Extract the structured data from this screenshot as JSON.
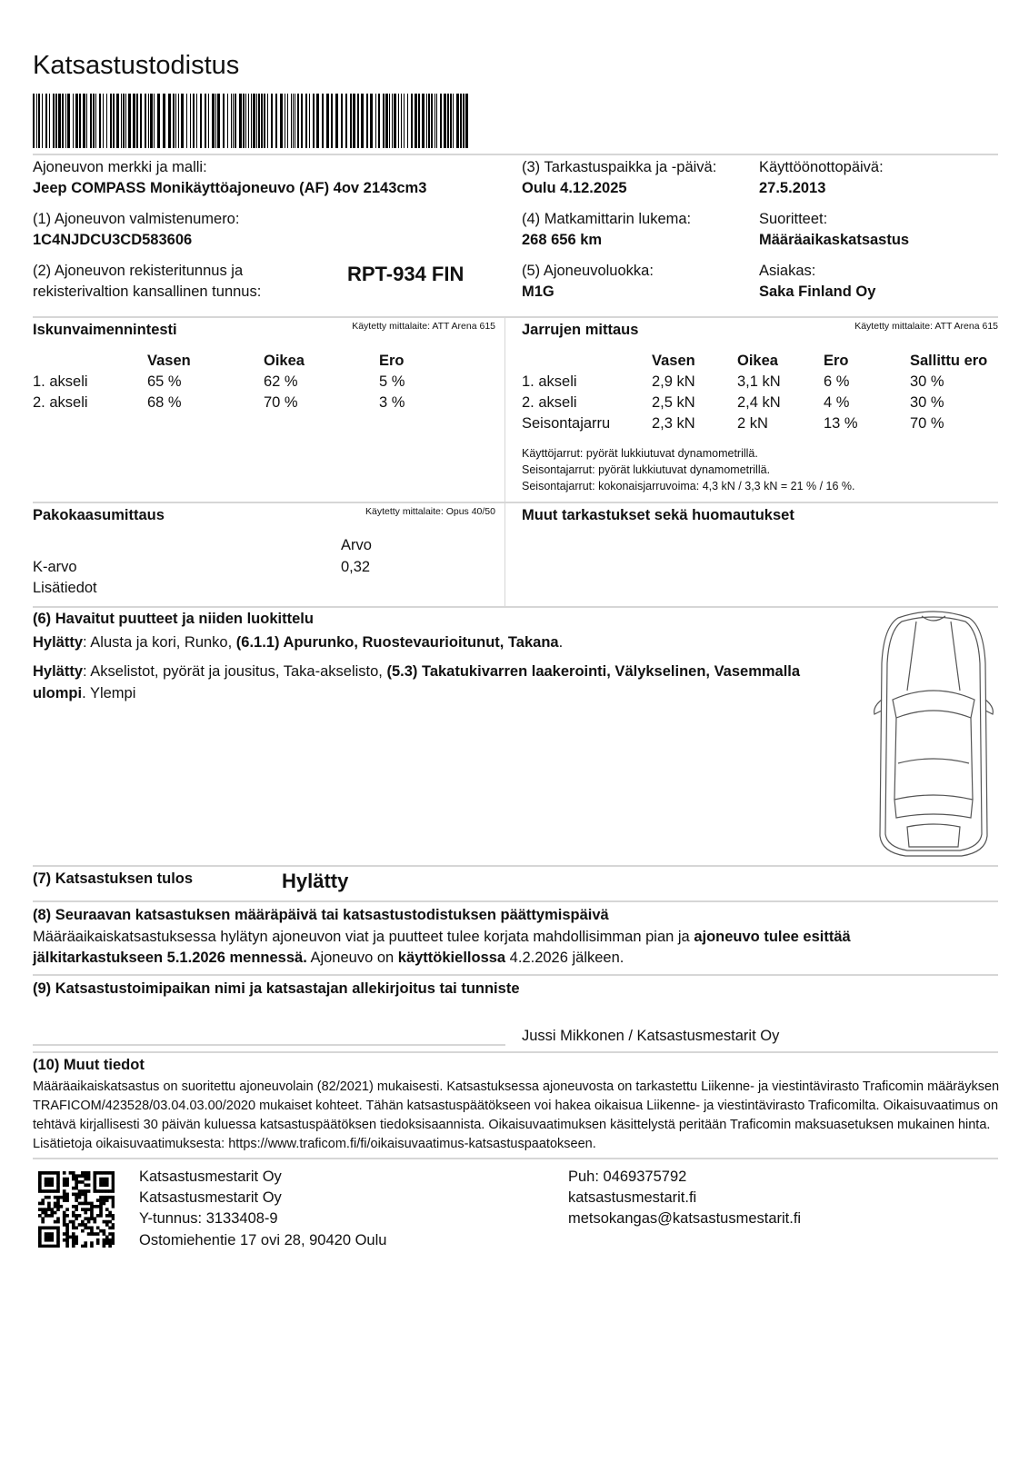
{
  "title": "Katsastustodistus",
  "vehicle": {
    "make_model_label": "Ajoneuvon merkki ja malli:",
    "make_model": "Jeep COMPASS Monikäyttöajoneuvo (AF) 4ov 2143cm3",
    "vin_label": "(1) Ajoneuvon valmistenumero:",
    "vin": "1C4NJDCU3CD583606",
    "reg_label_1": "(2) Ajoneuvon rekisteritunnus ja",
    "reg_label_2": "rekisterivaltion kansallinen tunnus:",
    "reg": "RPT-934 FIN",
    "place_date_label": "(3) Tarkastuspaikka ja -päivä:",
    "place_date": "Oulu 4.12.2025",
    "odometer_label": "(4) Matkamittarin lukema:",
    "odometer": "268 656 km",
    "class_label": "(5) Ajoneuvoluokka:",
    "class": "M1G",
    "first_use_label": "Käyttöönottopäivä:",
    "first_use": "27.5.2013",
    "services_label": "Suoritteet:",
    "services": "Määräaikaskatsastus",
    "customer_label": "Asiakas:",
    "customer": "Saka Finland Oy"
  },
  "shock": {
    "title": "Iskunvaimennintesti",
    "meter": "Käytetty mittalaite: ATT Arena 615",
    "headers": [
      "Vasen",
      "Oikea",
      "Ero"
    ],
    "rows": [
      {
        "label": "1. akseli",
        "cells": [
          "65 %",
          "62 %",
          "5 %"
        ]
      },
      {
        "label": "2. akseli",
        "cells": [
          "68 %",
          "70 %",
          "3 %"
        ]
      }
    ]
  },
  "brakes": {
    "title": "Jarrujen mittaus",
    "meter": "Käytetty mittalaite: ATT Arena 615",
    "headers": [
      "Vasen",
      "Oikea",
      "Ero",
      "Sallittu ero"
    ],
    "rows": [
      {
        "label": "1. akseli",
        "cells": [
          "2,9 kN",
          "3,1 kN",
          "6 %",
          "30 %"
        ]
      },
      {
        "label": "2. akseli",
        "cells": [
          "2,5 kN",
          "2,4 kN",
          "4 %",
          "30 %"
        ]
      },
      {
        "label": "Seisontajarru",
        "cells": [
          "2,3 kN",
          "2 kN",
          "13 %",
          "70 %"
        ]
      }
    ],
    "notes": [
      "Käyttöjarrut: pyörät lukkiutuvat dynamometrillä.",
      "Seisontajarrut: pyörät lukkiutuvat dynamometrillä.",
      "Seisontajarrut: kokonaisjarruvoima: 4,3 kN / 3,3 kN = 21 % / 16 %."
    ]
  },
  "exhaust": {
    "title": "Pakokaasumittaus",
    "meter": "Käytetty mittalaite: Opus 40/50",
    "value_header": "Arvo",
    "k_label": "K-arvo",
    "k_value": "0,32",
    "extra_label": "Lisätiedot"
  },
  "other_checks": {
    "title": "Muut tarkastukset sekä huomautukset"
  },
  "defects": {
    "title": "(6) Havaitut puutteet ja niiden luokittelu",
    "items": [
      [
        {
          "t": "Hylätty",
          "b": true
        },
        {
          "t": ": Alusta ja kori, Runko, "
        },
        {
          "t": "(6.1.1) Apurunko, Ruostevaurioitunut, Takana",
          "b": true
        },
        {
          "t": "."
        }
      ],
      [
        {
          "t": "Hylätty",
          "b": true
        },
        {
          "t": ": Akselistot, pyörät ja jousitus, Taka-akselisto, "
        },
        {
          "t": "(5.3) Takatukivarren laakerointi, Välykselinen, Vasemmalla ulompi",
          "b": true
        },
        {
          "t": ".  Ylempi"
        }
      ]
    ]
  },
  "result": {
    "label": "(7) Katsastuksen tulos",
    "value": "Hylätty"
  },
  "next": {
    "title": "(8) Seuraavan katsastuksen määräpäivä tai katsastustodistuksen päättymispäivä",
    "text": [
      {
        "t": "Määräaikaiskatsastuksessa hylätyn ajoneuvon viat ja puutteet tulee korjata mahdollisimman pian ja "
      },
      {
        "t": "ajoneuvo tulee esittää jälkitarkastukseen 5.1.2026 mennessä.",
        "b": true
      },
      {
        "t": " Ajoneuvo on "
      },
      {
        "t": "käyttökiellossa",
        "b": true
      },
      {
        "t": " 4.2.2026 jälkeen."
      }
    ]
  },
  "signature": {
    "title": "(9) Katsastustoimipaikan nimi ja katsastajan allekirjoitus tai tunniste",
    "name": "Jussi Mikkonen / Katsastusmestarit Oy"
  },
  "other_info": {
    "title": "(10) Muut tiedot",
    "text": "Määräaikaiskatsastus on suoritettu ajoneuvolain (82/2021) mukaisesti. Katsastuksessa ajoneuvosta on tarkastettu Liikenne- ja viestintävirasto Traficomin määräyksen TRAFICOM/423528/03.04.03.00/2020 mukaiset kohteet. Tähän katsastuspäätökseen voi hakea oikaisua Liikenne- ja viestintävirasto Traficomilta. Oikaisuvaatimus on tehtävä kirjallisesti 30 päivän kuluessa katsastuspäätöksen tiedoksisaannista. Oikaisuvaatimuksen käsittelystä peritään Traficomin maksuasetuksen mukainen hinta. Lisätietoja oikaisuvaatimuksesta: https://www.traficom.fi/fi/oikaisuvaatimus-katsastuspaatokseen."
  },
  "footer": {
    "left": [
      "Katsastusmestarit Oy",
      "Katsastusmestarit Oy",
      "Y-tunnus: 3133408-9",
      "Ostomiehentie 17 ovi 28, 90420 Oulu"
    ],
    "right": [
      "Puh: 0469375792",
      "katsastusmestarit.fi",
      "metsokangas@katsastusmestarit.fi"
    ]
  },
  "icons": {
    "barcode": "barcode-icon",
    "qr": "qr-code-icon",
    "car": "car-top-view-diagram"
  }
}
